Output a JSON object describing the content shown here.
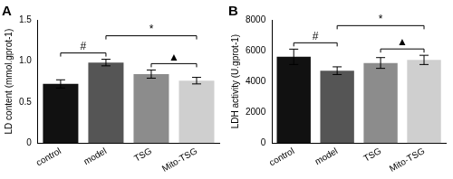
{
  "chart_data": [
    {
      "type": "bar",
      "title": "A",
      "y_label": "LD content (mmol.gprot-1)",
      "categories": [
        "control",
        "model",
        "TSG",
        "Mito-TSG"
      ],
      "values": [
        0.72,
        0.98,
        0.84,
        0.76
      ],
      "errors": [
        0.05,
        0.04,
        0.05,
        0.04
      ],
      "colors": [
        "#111111",
        "#555555",
        "#8c8c8c",
        "#cfcfcf"
      ],
      "ylim": [
        0,
        1.5
      ],
      "yticks": [
        0,
        0.5,
        {
          "value": 1,
          "label": "1.0"
        },
        1.5
      ],
      "grid": false,
      "annotations": [
        {
          "text": "#",
          "from": "control",
          "to": "model"
        },
        {
          "text": "▲",
          "from": "TSG",
          "to": "Mito-TSG"
        },
        {
          "text": "*",
          "from": "model",
          "to": "Mito-TSG"
        }
      ]
    },
    {
      "type": "bar",
      "title": "B",
      "y_label": "LDH activity (U.gprot-1)",
      "categories": [
        "control",
        "model",
        "TSG",
        "Mito-TSG"
      ],
      "values": [
        5600,
        4700,
        5200,
        5400
      ],
      "errors": [
        500,
        250,
        350,
        300
      ],
      "colors": [
        "#111111",
        "#555555",
        "#8c8c8c",
        "#cfcfcf"
      ],
      "ylim": [
        0,
        8000
      ],
      "yticks": [
        0,
        2000,
        4000,
        6000,
        8000
      ],
      "grid": false,
      "annotations": [
        {
          "text": "#",
          "from": "control",
          "to": "model"
        },
        {
          "text": "▲",
          "from": "TSG",
          "to": "Mito-TSG"
        },
        {
          "text": "*",
          "from": "model",
          "to": "Mito-TSG"
        }
      ]
    }
  ]
}
